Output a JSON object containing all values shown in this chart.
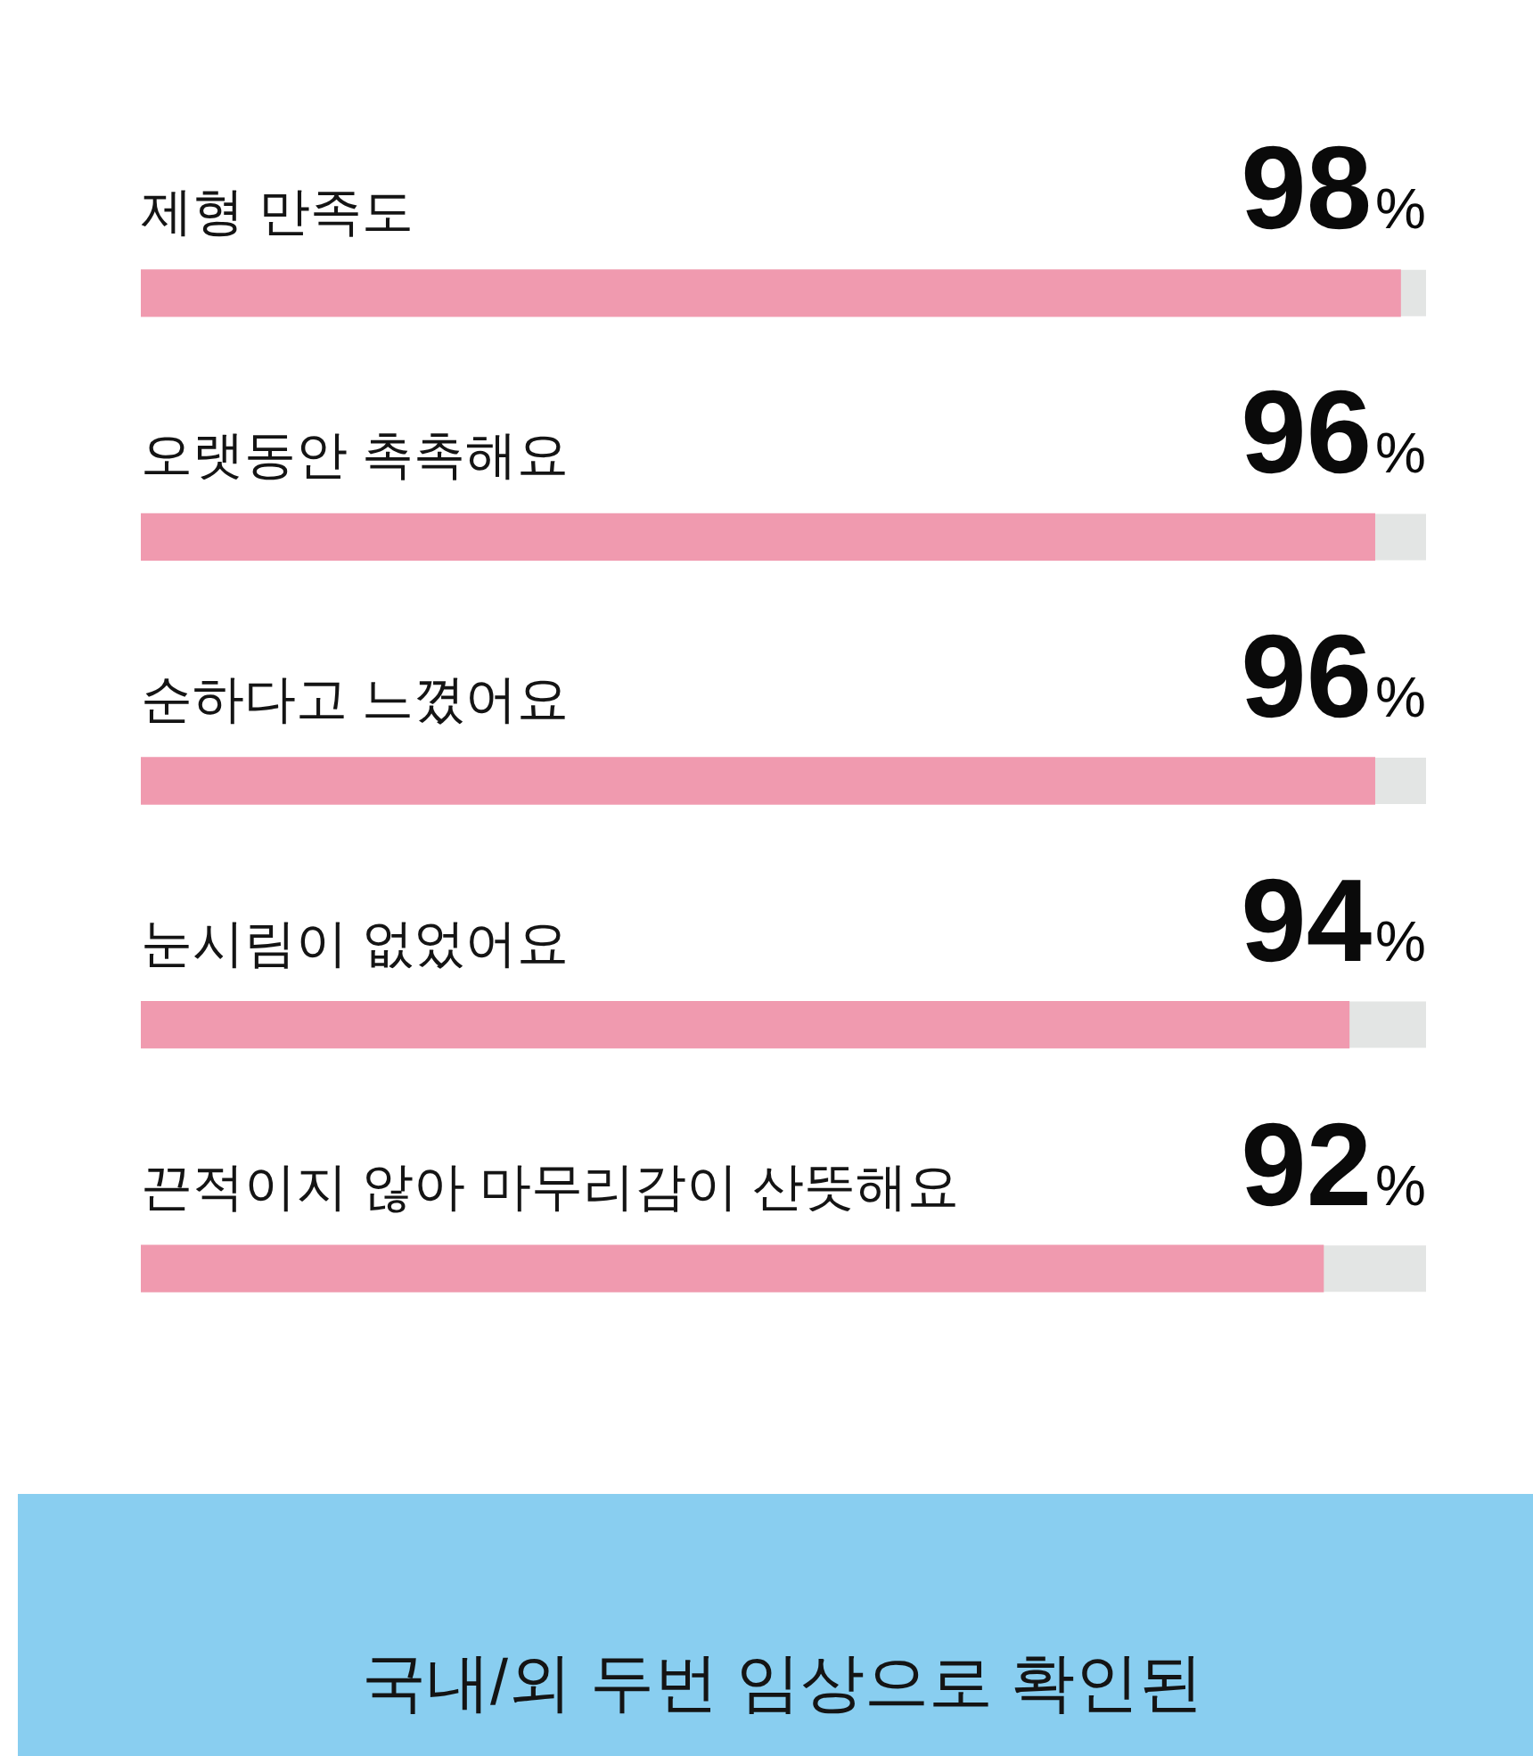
{
  "chart_data": {
    "type": "bar",
    "orientation": "horizontal",
    "categories": [
      "제형 만족도",
      "오랫동안 촉촉해요",
      "순하다고 느꼈어요",
      "눈시림이 없었어요",
      "끈적이지 않아 마무리감이 산뜻해요"
    ],
    "values": [
      98,
      96,
      96,
      94,
      92
    ],
    "color": "#f09aaf",
    "value_labels": [
      "98%",
      "96%",
      "96%",
      "94%",
      "92%"
    ],
    "tick_labels": "y",
    "annotations": [
      "국내/외 두번 임상으로 확인된"
    ]
  }
}
